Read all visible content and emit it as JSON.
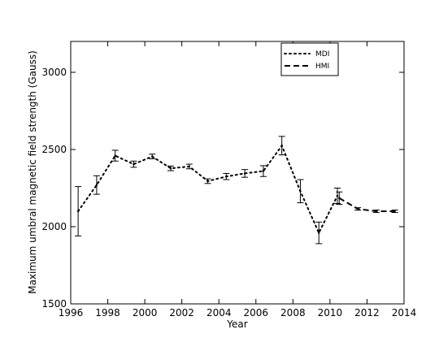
{
  "chart_data": {
    "type": "line",
    "xlabel": "Year",
    "ylabel": "Maximum umbral magnetic field strength (Gauss)",
    "xlim": [
      1996,
      2014
    ],
    "ylim": [
      1500,
      3200
    ],
    "x_ticks": [
      1996,
      1998,
      2000,
      2002,
      2004,
      2006,
      2008,
      2010,
      2012,
      2014
    ],
    "y_ticks": [
      1500,
      2000,
      2500,
      3000
    ],
    "grid": false,
    "legend_position": "top-right",
    "series": [
      {
        "name": "MDI",
        "line_style": "dotted",
        "x": [
          1996.4,
          1997.4,
          1998.4,
          1999.4,
          2000.4,
          2001.4,
          2002.4,
          2003.4,
          2004.4,
          2005.4,
          2006.4,
          2007.4,
          2008.4,
          2009.4,
          2010.4
        ],
        "y": [
          2100,
          2270,
          2460,
          2405,
          2455,
          2378,
          2390,
          2295,
          2325,
          2345,
          2360,
          2525,
          2230,
          1960,
          2200
        ],
        "err": [
          160,
          60,
          35,
          20,
          15,
          15,
          15,
          15,
          20,
          25,
          35,
          60,
          75,
          70,
          50
        ]
      },
      {
        "name": "HMI",
        "line_style": "dashed",
        "x": [
          2010.5,
          2011.5,
          2012.5,
          2013.5
        ],
        "y": [
          2185,
          2115,
          2100,
          2100
        ],
        "err": [
          40,
          8,
          8,
          8
        ]
      }
    ]
  }
}
